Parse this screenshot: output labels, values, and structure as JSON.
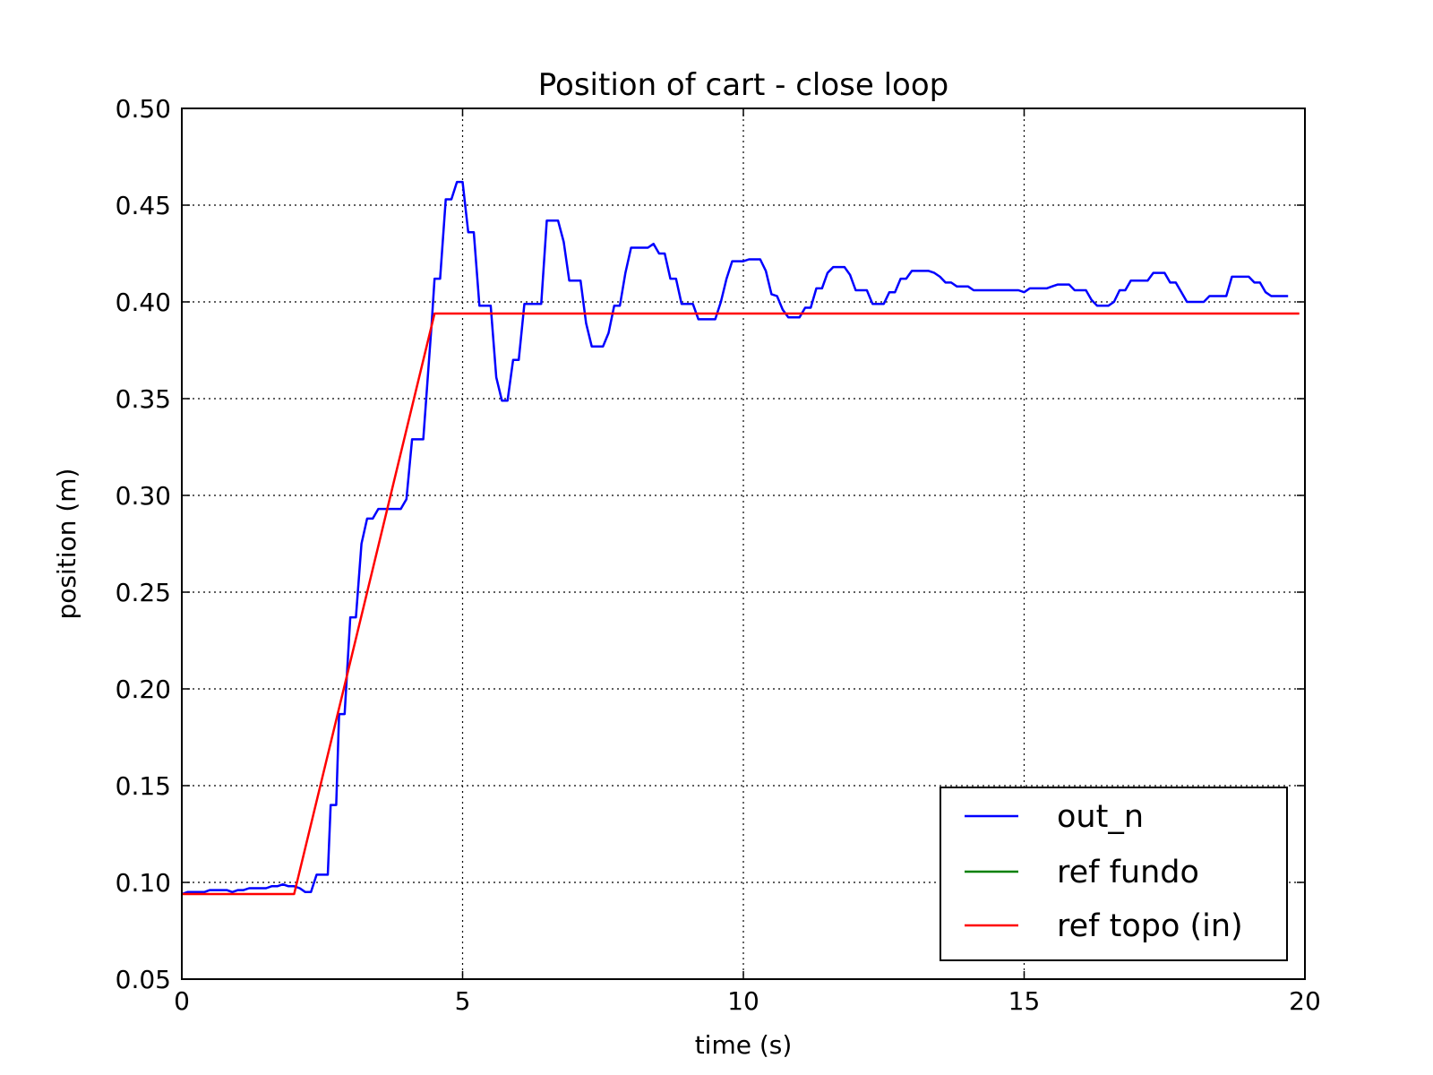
{
  "chart_data": {
    "type": "line",
    "title": "Position of cart - close loop",
    "xlabel": "time (s)",
    "ylabel": "position (m)",
    "xlim": [
      0,
      20
    ],
    "ylim": [
      0.05,
      0.5
    ],
    "xticks": [
      0,
      5,
      10,
      15,
      20
    ],
    "yticks": [
      0.05,
      0.1,
      0.15,
      0.2,
      0.25,
      0.3,
      0.35,
      0.4,
      0.45,
      0.5
    ],
    "xtick_labels": [
      "0",
      "5",
      "10",
      "15",
      "20"
    ],
    "ytick_labels": [
      "0.05",
      "0.10",
      "0.15",
      "0.20",
      "0.25",
      "0.30",
      "0.35",
      "0.40",
      "0.45",
      "0.50"
    ],
    "grid": true,
    "legend_position": "bottom-right",
    "series": [
      {
        "name": "out_n",
        "color": "#0000ff",
        "points": [
          [
            0.0,
            0.094
          ],
          [
            0.1,
            0.095
          ],
          [
            0.4,
            0.095
          ],
          [
            0.5,
            0.096
          ],
          [
            0.8,
            0.096
          ],
          [
            0.9,
            0.095
          ],
          [
            1.0,
            0.096
          ],
          [
            1.1,
            0.096
          ],
          [
            1.2,
            0.097
          ],
          [
            1.5,
            0.097
          ],
          [
            1.6,
            0.098
          ],
          [
            1.7,
            0.098
          ],
          [
            1.8,
            0.099
          ],
          [
            1.9,
            0.098
          ],
          [
            2.0,
            0.098
          ],
          [
            2.1,
            0.097
          ],
          [
            2.2,
            0.095
          ],
          [
            2.3,
            0.095
          ],
          [
            2.4,
            0.104
          ],
          [
            2.6,
            0.104
          ],
          [
            2.65,
            0.14
          ],
          [
            2.75,
            0.14
          ],
          [
            2.8,
            0.187
          ],
          [
            2.9,
            0.187
          ],
          [
            3.0,
            0.237
          ],
          [
            3.1,
            0.237
          ],
          [
            3.2,
            0.275
          ],
          [
            3.3,
            0.288
          ],
          [
            3.4,
            0.288
          ],
          [
            3.5,
            0.293
          ],
          [
            3.9,
            0.293
          ],
          [
            4.0,
            0.298
          ],
          [
            4.1,
            0.329
          ],
          [
            4.3,
            0.329
          ],
          [
            4.45,
            0.389
          ],
          [
            4.5,
            0.412
          ],
          [
            4.6,
            0.412
          ],
          [
            4.7,
            0.453
          ],
          [
            4.8,
            0.453
          ],
          [
            4.9,
            0.462
          ],
          [
            5.0,
            0.462
          ],
          [
            5.1,
            0.436
          ],
          [
            5.2,
            0.436
          ],
          [
            5.3,
            0.398
          ],
          [
            5.5,
            0.398
          ],
          [
            5.6,
            0.361
          ],
          [
            5.7,
            0.349
          ],
          [
            5.8,
            0.349
          ],
          [
            5.9,
            0.37
          ],
          [
            6.0,
            0.37
          ],
          [
            6.1,
            0.399
          ],
          [
            6.4,
            0.399
          ],
          [
            6.5,
            0.442
          ],
          [
            6.7,
            0.442
          ],
          [
            6.8,
            0.431
          ],
          [
            6.9,
            0.411
          ],
          [
            7.1,
            0.411
          ],
          [
            7.2,
            0.389
          ],
          [
            7.3,
            0.377
          ],
          [
            7.5,
            0.377
          ],
          [
            7.6,
            0.384
          ],
          [
            7.7,
            0.398
          ],
          [
            7.8,
            0.398
          ],
          [
            7.9,
            0.415
          ],
          [
            8.0,
            0.428
          ],
          [
            8.3,
            0.428
          ],
          [
            8.4,
            0.43
          ],
          [
            8.5,
            0.425
          ],
          [
            8.6,
            0.425
          ],
          [
            8.7,
            0.412
          ],
          [
            8.8,
            0.412
          ],
          [
            8.9,
            0.399
          ],
          [
            9.1,
            0.399
          ],
          [
            9.2,
            0.391
          ],
          [
            9.5,
            0.391
          ],
          [
            9.6,
            0.4
          ],
          [
            9.7,
            0.412
          ],
          [
            9.8,
            0.421
          ],
          [
            10.0,
            0.421
          ],
          [
            10.1,
            0.422
          ],
          [
            10.3,
            0.422
          ],
          [
            10.4,
            0.416
          ],
          [
            10.5,
            0.404
          ],
          [
            10.6,
            0.403
          ],
          [
            10.7,
            0.396
          ],
          [
            10.8,
            0.392
          ],
          [
            11.0,
            0.392
          ],
          [
            11.1,
            0.397
          ],
          [
            11.2,
            0.397
          ],
          [
            11.3,
            0.407
          ],
          [
            11.4,
            0.407
          ],
          [
            11.5,
            0.415
          ],
          [
            11.6,
            0.418
          ],
          [
            11.8,
            0.418
          ],
          [
            11.9,
            0.414
          ],
          [
            12.0,
            0.406
          ],
          [
            12.2,
            0.406
          ],
          [
            12.3,
            0.399
          ],
          [
            12.5,
            0.399
          ],
          [
            12.6,
            0.405
          ],
          [
            12.7,
            0.405
          ],
          [
            12.8,
            0.412
          ],
          [
            12.9,
            0.412
          ],
          [
            13.0,
            0.416
          ],
          [
            13.3,
            0.416
          ],
          [
            13.4,
            0.415
          ],
          [
            13.5,
            0.413
          ],
          [
            13.6,
            0.41
          ],
          [
            13.7,
            0.41
          ],
          [
            13.8,
            0.408
          ],
          [
            14.0,
            0.408
          ],
          [
            14.1,
            0.406
          ],
          [
            14.9,
            0.406
          ],
          [
            15.0,
            0.405
          ],
          [
            15.1,
            0.407
          ],
          [
            15.4,
            0.407
          ],
          [
            15.5,
            0.408
          ],
          [
            15.6,
            0.409
          ],
          [
            15.8,
            0.409
          ],
          [
            15.9,
            0.406
          ],
          [
            16.1,
            0.406
          ],
          [
            16.2,
            0.401
          ],
          [
            16.3,
            0.398
          ],
          [
            16.5,
            0.398
          ],
          [
            16.6,
            0.4
          ],
          [
            16.7,
            0.406
          ],
          [
            16.8,
            0.406
          ],
          [
            16.9,
            0.411
          ],
          [
            17.2,
            0.411
          ],
          [
            17.3,
            0.415
          ],
          [
            17.5,
            0.415
          ],
          [
            17.6,
            0.41
          ],
          [
            17.7,
            0.41
          ],
          [
            17.8,
            0.405
          ],
          [
            17.9,
            0.4
          ],
          [
            18.2,
            0.4
          ],
          [
            18.3,
            0.403
          ],
          [
            18.6,
            0.403
          ],
          [
            18.7,
            0.413
          ],
          [
            19.0,
            0.413
          ],
          [
            19.1,
            0.41
          ],
          [
            19.2,
            0.41
          ],
          [
            19.3,
            0.405
          ],
          [
            19.4,
            0.403
          ],
          [
            19.7,
            0.403
          ]
        ]
      },
      {
        "name": "ref fundo",
        "color": "#008000",
        "points": []
      },
      {
        "name": "ref topo (in)",
        "color": "#ff0000",
        "points": [
          [
            0,
            0.094
          ],
          [
            2.0,
            0.094
          ],
          [
            4.5,
            0.394
          ],
          [
            19.9,
            0.394
          ]
        ]
      }
    ]
  }
}
